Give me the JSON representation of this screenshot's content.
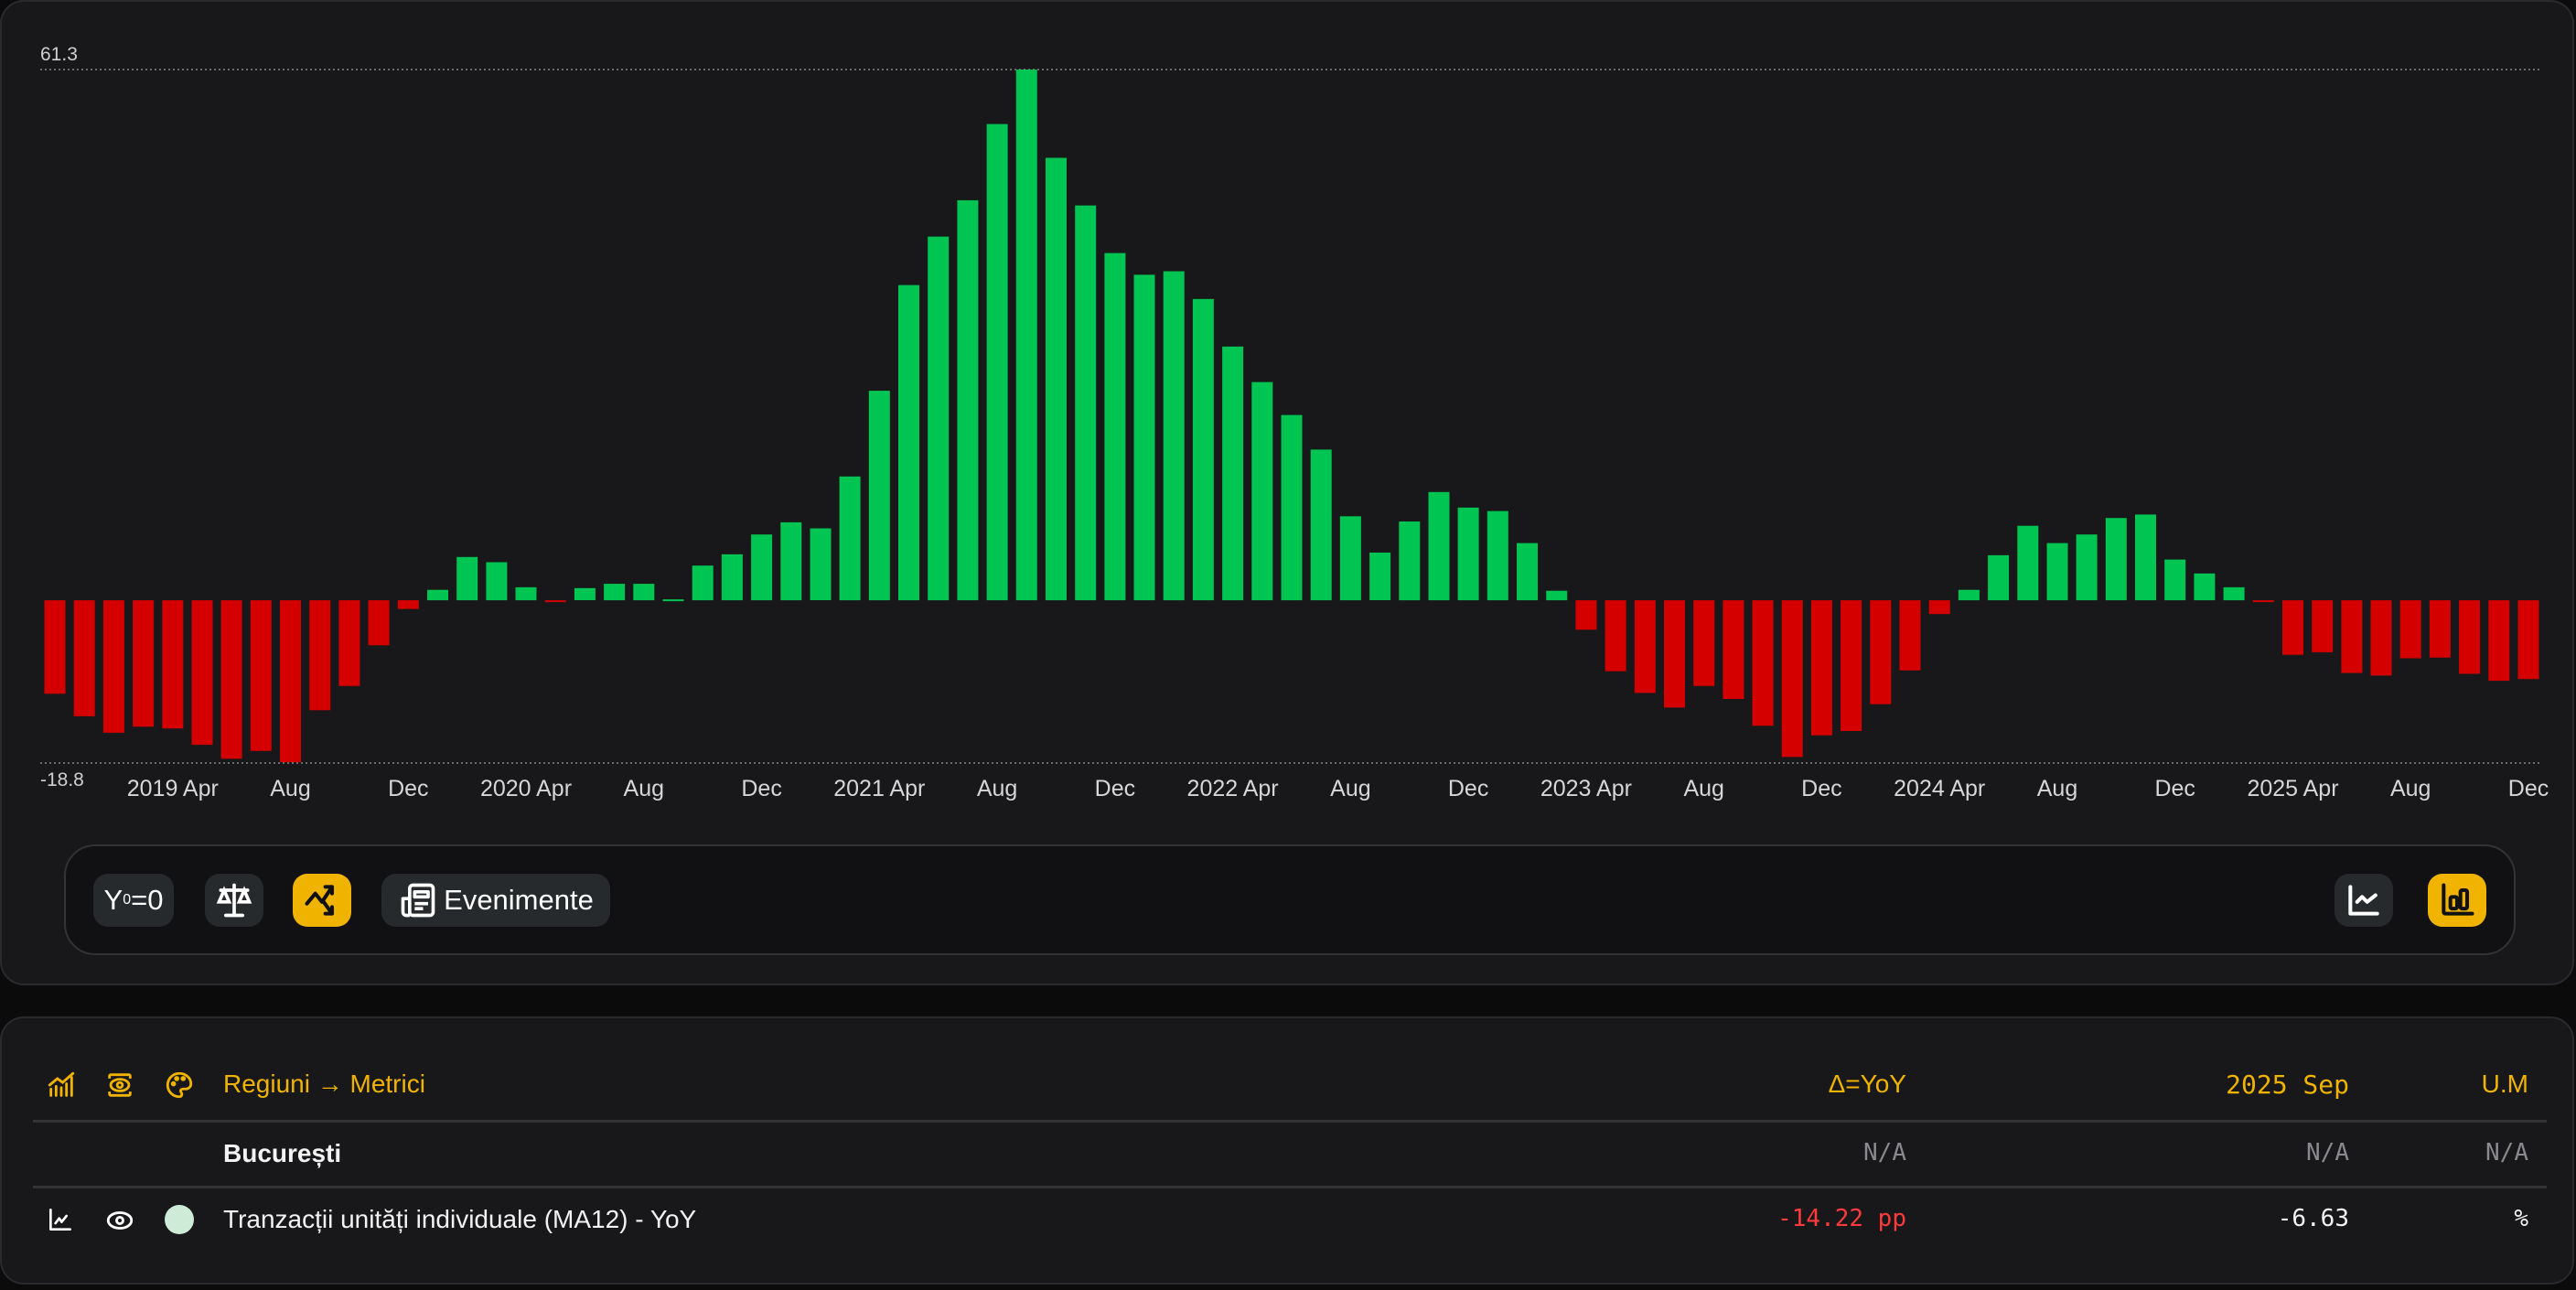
{
  "chart_data": {
    "type": "bar",
    "categories": [
      "2018 Dec",
      "2019 Jan",
      "2019 Feb",
      "2019 Mar",
      "2019 Apr",
      "2019 May",
      "2019 Jun",
      "2019 Jul",
      "2019 Aug",
      "2019 Sep",
      "2019 Oct",
      "2019 Nov",
      "2019 Dec",
      "2020 Jan",
      "2020 Feb",
      "2020 Mar",
      "2020 Apr",
      "2020 May",
      "2020 Jun",
      "2020 Jul",
      "2020 Aug",
      "2020 Sep",
      "2020 Oct",
      "2020 Nov",
      "2020 Dec",
      "2021 Jan",
      "2021 Feb",
      "2021 Mar",
      "2021 Apr",
      "2021 May",
      "2021 Jun",
      "2021 Jul",
      "2021 Aug",
      "2021 Sep",
      "2021 Oct",
      "2021 Nov",
      "2021 Dec",
      "2022 Jan",
      "2022 Feb",
      "2022 Mar",
      "2022 Apr",
      "2022 May",
      "2022 Jun",
      "2022 Jul",
      "2022 Aug",
      "2022 Sep",
      "2022 Oct",
      "2022 Nov",
      "2022 Dec",
      "2023 Jan",
      "2023 Feb",
      "2023 Mar",
      "2023 Apr",
      "2023 May",
      "2023 Jun",
      "2023 Jul",
      "2023 Aug",
      "2023 Sep",
      "2023 Oct",
      "2023 Nov",
      "2023 Dec",
      "2024 Jan",
      "2024 Feb",
      "2024 Mar",
      "2024 Apr",
      "2024 May",
      "2024 Jun",
      "2024 Jul",
      "2024 Aug",
      "2024 Sep",
      "2024 Oct",
      "2024 Nov",
      "2024 Dec",
      "2025 Jan",
      "2025 Feb",
      "2025 Mar",
      "2025 Apr",
      "2025 May",
      "2025 Jun",
      "2025 Jul",
      "2025 Aug",
      "2025 Sep",
      "2025 Oct",
      "2025 Nov",
      "2025 Dec"
    ],
    "values": [
      -10.8,
      -13.4,
      -15.3,
      -14.6,
      -14.8,
      -16.7,
      -18.3,
      -17.4,
      -18.7,
      -12.7,
      -9.9,
      -5.2,
      -1.0,
      1.2,
      5.0,
      4.4,
      1.5,
      -0.2,
      1.4,
      1.9,
      1.9,
      0.1,
      4.0,
      5.3,
      7.6,
      9.0,
      8.3,
      14.3,
      24.2,
      36.4,
      42.0,
      46.2,
      55.0,
      61.3,
      51.1,
      45.6,
      40.1,
      37.6,
      38.0,
      34.8,
      29.3,
      25.2,
      21.4,
      17.4,
      9.7,
      5.5,
      9.1,
      12.5,
      10.7,
      10.3,
      6.6,
      1.1,
      -3.4,
      -8.2,
      -10.7,
      -12.4,
      -9.9,
      -11.4,
      -14.5,
      -18.1,
      -15.6,
      -15.1,
      -12.0,
      -8.1,
      -1.6,
      1.2,
      5.2,
      8.6,
      6.6,
      7.6,
      9.5,
      9.9,
      4.7,
      3.1,
      1.5,
      -0.2,
      -6.3,
      -6.0,
      -8.4,
      -8.7,
      -6.7,
      -6.63,
      -8.5,
      -9.3,
      -9.1
    ],
    "x_tick_labels": [
      "2019 Apr",
      "Aug",
      "Dec",
      "2020 Apr",
      "Aug",
      "Dec",
      "2021 Apr",
      "Aug",
      "Dec",
      "2022 Apr",
      "Aug",
      "Dec",
      "2023 Apr",
      "Aug",
      "Dec",
      "2024 Apr",
      "Aug",
      "Dec",
      "2025 Apr",
      "Aug",
      "Dec"
    ],
    "y_tick_labels": {
      "max": "61.3",
      "min": "-18.8"
    },
    "ylim": [
      -18.8,
      61.3
    ],
    "grid": "dotted lines at min and max",
    "positive_color": "#00c552",
    "negative_color": "#d40000"
  },
  "toolbar": {
    "y0_label": "Y",
    "y0_sub": "0",
    "y0_suffix": "=0",
    "balance_icon": "scale-balance-icon",
    "trend_icon": "trend-up-down-icon",
    "events_icon": "newspaper-icon",
    "events_label": "Evenimente",
    "line_chart_icon": "line-chart-icon",
    "bar_chart_icon": "bar-chart-icon",
    "accent": "#f0b400"
  },
  "table": {
    "header": {
      "group_label": "Regiuni → Metrici",
      "delta_label": "Δ=YoY",
      "period_label": "2025 Sep",
      "unit_label": "U.M"
    },
    "group_row": {
      "name": "București",
      "delta": "N/A",
      "value": "N/A",
      "unit": "N/A"
    },
    "rows": [
      {
        "name": "Tranzacții unități individuale (MA12) - YoY",
        "delta": "-14.22 pp",
        "value": "-6.63",
        "unit": "%",
        "swatch": "#cdebd7",
        "delta_color": "#ff3b3b"
      }
    ]
  }
}
